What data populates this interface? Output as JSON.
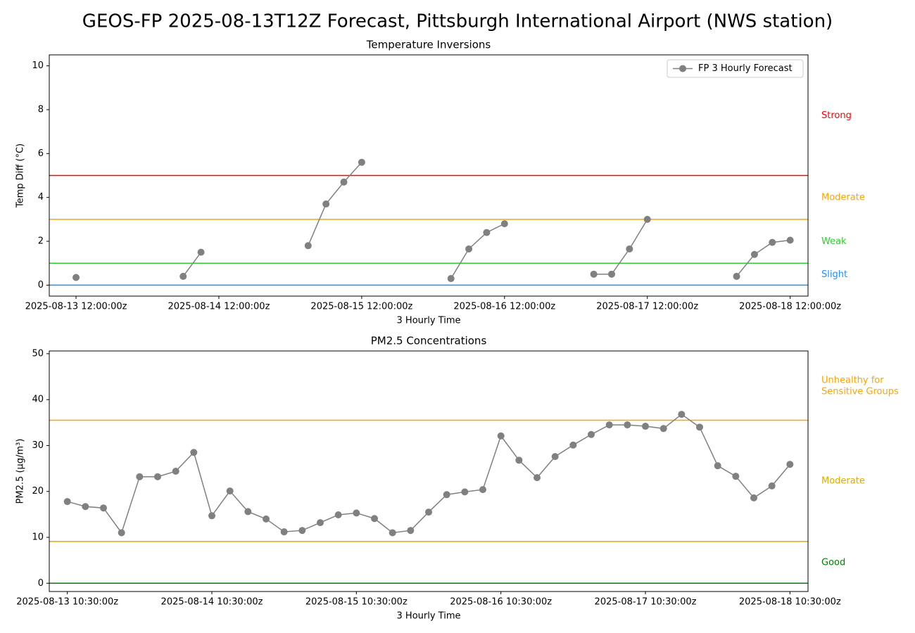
{
  "title": "GEOS-FP 2025-08-13T12Z Forecast, Pittsburgh International Airport (NWS station)",
  "chart_data": [
    {
      "type": "line",
      "title": "Temperature Inversions",
      "x_label": "3 Hourly Time",
      "y_label": "Temp Diff (°C)",
      "x": [
        "2025-08-13 12:00:00z",
        "2025-08-13 15:00:00z",
        "2025-08-13 18:00:00z",
        "2025-08-13 21:00:00z",
        "2025-08-14 00:00:00z",
        "2025-08-14 03:00:00z",
        "2025-08-14 06:00:00z",
        "2025-08-14 09:00:00z",
        "2025-08-14 12:00:00z",
        "2025-08-14 15:00:00z",
        "2025-08-14 18:00:00z",
        "2025-08-14 21:00:00z",
        "2025-08-15 00:00:00z",
        "2025-08-15 03:00:00z",
        "2025-08-15 06:00:00z",
        "2025-08-15 09:00:00z",
        "2025-08-15 12:00:00z",
        "2025-08-15 15:00:00z",
        "2025-08-15 18:00:00z",
        "2025-08-15 21:00:00z",
        "2025-08-16 00:00:00z",
        "2025-08-16 03:00:00z",
        "2025-08-16 06:00:00z",
        "2025-08-16 09:00:00z",
        "2025-08-16 12:00:00z",
        "2025-08-16 15:00:00z",
        "2025-08-16 18:00:00z",
        "2025-08-16 21:00:00z",
        "2025-08-17 00:00:00z",
        "2025-08-17 03:00:00z",
        "2025-08-17 06:00:00z",
        "2025-08-17 09:00:00z",
        "2025-08-17 12:00:00z",
        "2025-08-17 15:00:00z",
        "2025-08-17 18:00:00z",
        "2025-08-17 21:00:00z",
        "2025-08-18 00:00:00z",
        "2025-08-18 03:00:00z",
        "2025-08-18 06:00:00z",
        "2025-08-18 09:00:00z",
        "2025-08-18 12:00:00z"
      ],
      "series": [
        {
          "name": "FP 3 Hourly Forecast",
          "color": "#808080",
          "values": [
            0.35,
            null,
            null,
            null,
            null,
            null,
            0.4,
            1.5,
            null,
            null,
            null,
            null,
            null,
            1.8,
            3.7,
            4.7,
            5.6,
            null,
            null,
            null,
            null,
            0.3,
            1.65,
            2.4,
            2.8,
            null,
            null,
            null,
            null,
            0.5,
            0.5,
            1.65,
            3.0,
            null,
            null,
            null,
            null,
            0.4,
            1.4,
            1.95,
            2.05
          ]
        }
      ],
      "xlim": [
        "2025-08-13 07:30:00z",
        "2025-08-18 15:00:00z"
      ],
      "xticks": [
        "2025-08-13 12:00:00z",
        "2025-08-14 12:00:00z",
        "2025-08-15 12:00:00z",
        "2025-08-16 12:00:00z",
        "2025-08-17 12:00:00z",
        "2025-08-18 12:00:00z"
      ],
      "ylim": [
        -0.5,
        10.5
      ],
      "yticks": [
        0,
        2,
        4,
        6,
        8,
        10
      ],
      "grid": false,
      "legend": "upper right",
      "hlines": [
        {
          "value": 0,
          "color": "#1e90ff",
          "label": "Slight"
        },
        {
          "value": 1,
          "color": "#32cd32",
          "label": "Weak"
        },
        {
          "value": 3,
          "color": "#ffa500",
          "label": "Moderate"
        },
        {
          "value": 5,
          "color": "#ff0000",
          "label": "Strong"
        }
      ]
    },
    {
      "type": "line",
      "title": "PM2.5 Concentrations",
      "x_label": "3 Hourly Time",
      "y_label": "PM2.5 (µg/m³)",
      "x": [
        "2025-08-13 10:30:00z",
        "2025-08-13 13:30:00z",
        "2025-08-13 16:30:00z",
        "2025-08-13 19:30:00z",
        "2025-08-13 22:30:00z",
        "2025-08-14 01:30:00z",
        "2025-08-14 04:30:00z",
        "2025-08-14 07:30:00z",
        "2025-08-14 10:30:00z",
        "2025-08-14 13:30:00z",
        "2025-08-14 16:30:00z",
        "2025-08-14 19:30:00z",
        "2025-08-14 22:30:00z",
        "2025-08-15 01:30:00z",
        "2025-08-15 04:30:00z",
        "2025-08-15 07:30:00z",
        "2025-08-15 10:30:00z",
        "2025-08-15 13:30:00z",
        "2025-08-15 16:30:00z",
        "2025-08-15 19:30:00z",
        "2025-08-15 22:30:00z",
        "2025-08-16 01:30:00z",
        "2025-08-16 04:30:00z",
        "2025-08-16 07:30:00z",
        "2025-08-16 10:30:00z",
        "2025-08-16 13:30:00z",
        "2025-08-16 16:30:00z",
        "2025-08-16 19:30:00z",
        "2025-08-16 22:30:00z",
        "2025-08-17 01:30:00z",
        "2025-08-17 04:30:00z",
        "2025-08-17 07:30:00z",
        "2025-08-17 10:30:00z",
        "2025-08-17 13:30:00z",
        "2025-08-17 16:30:00z",
        "2025-08-17 19:30:00z",
        "2025-08-17 22:30:00z",
        "2025-08-18 01:30:00z",
        "2025-08-18 04:30:00z",
        "2025-08-18 07:30:00z",
        "2025-08-18 10:30:00z"
      ],
      "series": [
        {
          "color": "#808080",
          "values": [
            17.8,
            16.7,
            16.4,
            11.0,
            23.2,
            23.2,
            24.4,
            28.5,
            14.7,
            20.1,
            15.6,
            14.0,
            11.2,
            11.5,
            13.2,
            14.9,
            15.3,
            14.1,
            11.0,
            11.5,
            15.5,
            19.3,
            19.9,
            20.4,
            32.1,
            26.8,
            23.0,
            27.6,
            30.1,
            32.4,
            34.5,
            34.5,
            34.2,
            33.7,
            36.8,
            34.0,
            25.6,
            23.3,
            18.6,
            21.2,
            25.9
          ]
        }
      ],
      "xlim": [
        "2025-08-13 07:30:00z",
        "2025-08-18 13:30:00z"
      ],
      "xticks": [
        "2025-08-13 10:30:00z",
        "2025-08-14 10:30:00z",
        "2025-08-15 10:30:00z",
        "2025-08-16 10:30:00z",
        "2025-08-17 10:30:00z",
        "2025-08-18 10:30:00z"
      ],
      "ylim": [
        -1.8,
        50.6
      ],
      "yticks": [
        0,
        10,
        20,
        30,
        40,
        50
      ],
      "grid": false,
      "hlines": [
        {
          "value": 0,
          "color": "#008000",
          "label": "Good"
        },
        {
          "value": 9.1,
          "color": "#e0aa00",
          "label": "Moderate"
        },
        {
          "value": 35.5,
          "color": "#ffa500",
          "label": "Unhealthy for\nSensitive Groups"
        }
      ]
    }
  ]
}
